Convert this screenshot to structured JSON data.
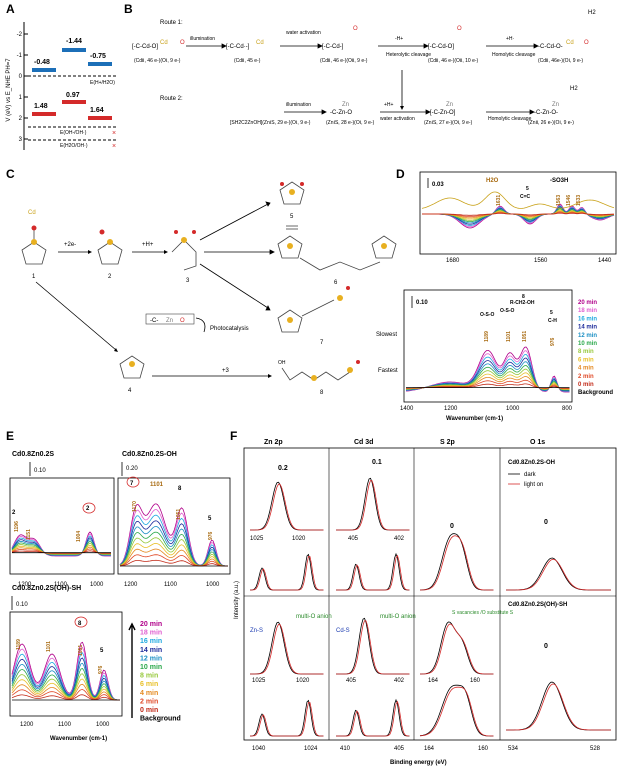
{
  "panel_a": {
    "letter": "A",
    "ylabel": "V (eV) vs E_NHE PH=7",
    "ticks": [
      "-2",
      "-1",
      "0",
      "1",
      "2",
      "3"
    ],
    "cb_labels": [
      "-0.48",
      "-1.44",
      "-0.75"
    ],
    "vb_labels": [
      "1.48",
      "0.97",
      "1.64"
    ],
    "level_h2": "E(H+/H2O)",
    "level_oh": "E(OH-/OH·)",
    "level_h2o": "E(H2O/OH·)",
    "cross": "×"
  },
  "panel_b": {
    "letter": "B",
    "route1": "Route 1:",
    "route2": "Route 2:",
    "r1_steps": [
      "illumination",
      "water activation",
      "-H+",
      "Heterolytic cleavage",
      "+H·",
      "Homolytic cleavage",
      "Homolytic cleavage"
    ],
    "r1_states": [
      "(CdⅡ, 46 e-)(OⅠ, 9 e-)",
      "(CdⅡ, 45 e-)",
      "(CdⅡ, 46 e-)(OⅡ, 9 e-)",
      "(CdⅡ, 46 e-)(OⅡ, 10 e-)",
      "(CdⅡ, 46e-)(OⅠ, 9 e-)"
    ],
    "r2_steps": [
      "illumination",
      "+H+",
      "water activation",
      "Homolytic cleavage"
    ],
    "r2_states": [
      "[SH2C2ZnOH](ZnⅠS, 29 e-)(OⅠ, 9 e-)",
      "(ZnⅠS, 28 e-)(OⅠ, 9 e-)",
      "(ZnⅠS, 27 e-)(OⅠ, 9 e-)",
      "(ZnⅡ, 26 e-)(OⅠ, 9 e-)"
    ],
    "atoms": [
      "Cd",
      "O",
      "Zn",
      "H",
      "H2"
    ]
  },
  "panel_c": {
    "letter": "C",
    "labels": [
      "1",
      "2",
      "3",
      "4",
      "5",
      "6",
      "7",
      "8"
    ],
    "steps": [
      "+2e-",
      "+H+",
      "Photocatalysis",
      "+3"
    ],
    "atoms": [
      "Cd",
      "Zn",
      "O",
      "S",
      "H",
      "OH"
    ]
  },
  "panel_d": {
    "letter": "D",
    "scale_top": "0.03",
    "scale_bottom": "0.10",
    "top_peaks": [
      "H2O",
      "1631",
      "-SO3H",
      "1563",
      "1546",
      "1533",
      "5",
      "C=C"
    ],
    "bottom_peaks": [
      "O-S-O",
      "O-S-O",
      "R-CH2-OH",
      "C-H",
      "1189",
      "1101",
      "1051",
      "976",
      "8",
      "5"
    ],
    "top_ticks": [
      "1680",
      "1560",
      "1440"
    ],
    "bottom_ticks": [
      "1400",
      "1200",
      "1000",
      "800"
    ],
    "xlabel": "Wavenumber (cm-1)",
    "slowest": "Slowest",
    "fastest": "Fastest",
    "legend": [
      "20 min",
      "18 min",
      "16 min",
      "14 min",
      "12 min",
      "10 min",
      "8 min",
      "6 min",
      "4 min",
      "2 min",
      "0 min",
      "Background"
    ]
  },
  "panel_e": {
    "letter": "E",
    "titles": [
      "Cd0.8Zn0.2S",
      "Cd0.8Zn0.2S-OH",
      "Cd0.8Zn0.2S(OH)-SH"
    ],
    "scales": [
      "0.10",
      "0.20",
      "0.10"
    ],
    "peaks1": [
      "2",
      "1196",
      "1151",
      "1004",
      "2"
    ],
    "peaks2": [
      "7",
      "1170",
      "1101",
      "8",
      "1051",
      "5",
      "976"
    ],
    "peaks3": [
      "1189",
      "1101",
      "8",
      "1051",
      "5",
      "976"
    ],
    "ticks": [
      "1200",
      "1100",
      "1000"
    ],
    "xlabel": "Wavenumber (cm-1)",
    "legend": [
      "20 min",
      "18 min",
      "16 min",
      "14 min",
      "12 min",
      "10 min",
      "8 min",
      "6 min",
      "4 min",
      "2 min",
      "0 min",
      "Background"
    ]
  },
  "panel_f": {
    "letter": "F",
    "columns": [
      "Zn 2p",
      "Cd 3d",
      "S 2p",
      "O 1s"
    ],
    "ylabel": "Intensity (a.u.)",
    "xlabel": "Binding energy (eV)",
    "shift_top": [
      "0.2",
      "0.1",
      "0",
      "0"
    ],
    "inset_ticks_zn": [
      "1025",
      "1020"
    ],
    "inset_ticks_cd": [
      "405",
      "402"
    ],
    "inset_ticks_s": [
      "164",
      "160"
    ],
    "sample_top": "Cd0.8Zn0.2S-OH",
    "sample_bottom": "Cd0.8Zn0.2S(OH)-SH",
    "legend_dark": "dark",
    "legend_light": "light on",
    "bottom_notes": [
      "Zn-S",
      "multi-O anion",
      "Cd-S",
      "multi-O anion",
      "S vacancies /O substitute S",
      "0"
    ],
    "bottom_ticks": [
      "1040",
      "1024",
      "410",
      "405",
      "164",
      "160",
      "534",
      "528"
    ]
  },
  "colors": {
    "legend": [
      "#b0008a",
      "#e060d0",
      "#1fa9e0",
      "#1c2a9a",
      "#1b8fc4",
      "#2aa84a",
      "#96c83a",
      "#e8c02a",
      "#e48a22",
      "#e04a28",
      "#c22a18",
      "#000000"
    ],
    "orange_label": "#a86a10",
    "red": "#d42a2a",
    "green": "#2a8a2a",
    "blue": "#1a3ab0"
  }
}
